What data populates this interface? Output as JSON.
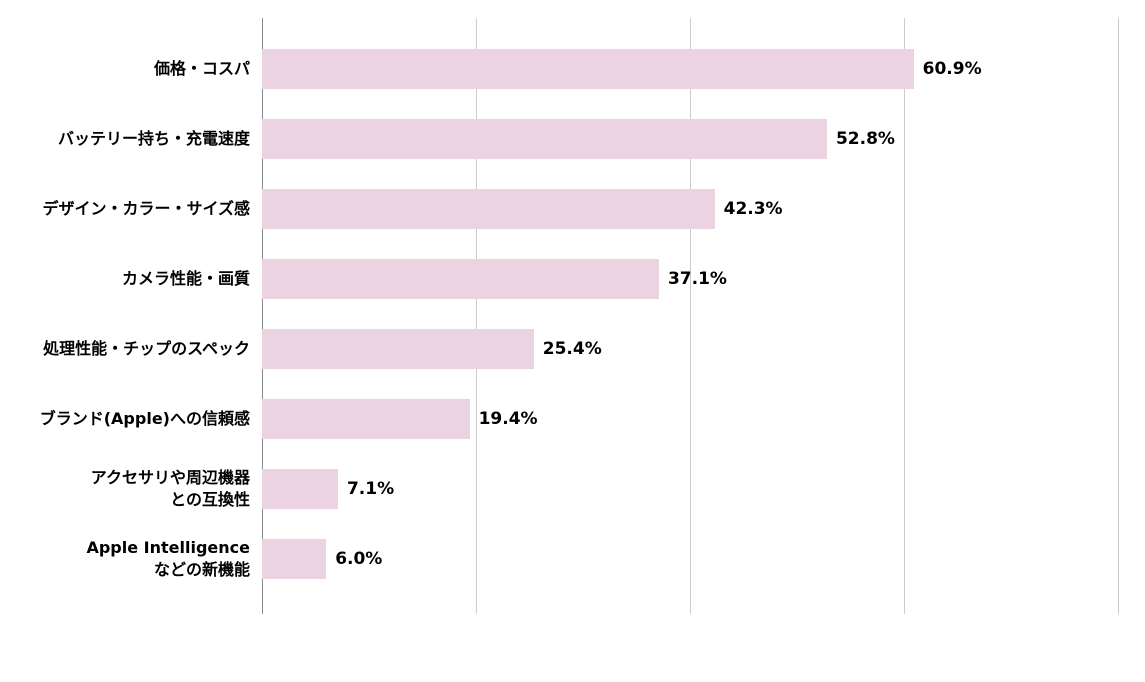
{
  "chart_data": {
    "type": "bar",
    "orientation": "horizontal",
    "title": "",
    "xlabel": "",
    "ylabel": "",
    "xlim": [
      0,
      80
    ],
    "gridlines": [
      0,
      20,
      40,
      60,
      80
    ],
    "grid_on": true,
    "legend": "none",
    "bar_color": "#ecd3e1",
    "grid_color": "#cccccc",
    "axis_color": "#8a8a8a",
    "categories": [
      "価格・コスパ",
      "バッテリー持ち・充電速度",
      "デザイン・カラー・サイズ感",
      "カメラ性能・画質",
      "処理性能・チップのスペック",
      "ブランド(Apple)への信頼感",
      "アクセサリや周辺機器\nとの互換性",
      "Apple Intelligence\nなどの新機能"
    ],
    "values": [
      60.9,
      52.8,
      42.3,
      37.1,
      25.4,
      19.4,
      7.1,
      6.0
    ],
    "value_labels": [
      "60.9%",
      "52.8%",
      "42.3%",
      "37.1%",
      "25.4%",
      "19.4%",
      "7.1%",
      "6.0%"
    ]
  }
}
